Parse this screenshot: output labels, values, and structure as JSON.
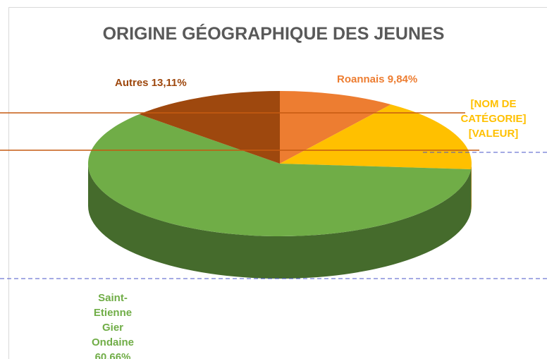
{
  "chart_data": {
    "type": "pie3d",
    "title": "ORIGINE GÉOGRAPHIQUE DES JEUNES",
    "categories": [
      "Roannais",
      "[NOM DE CATÉGORIE]",
      "Saint-Etienne Gier Ondaine",
      "Autres"
    ],
    "values": [
      9.84,
      16.39,
      60.66,
      13.11
    ],
    "value_labels": [
      "9,84%",
      "[VALEUR]",
      "60,66%",
      "13,11%"
    ],
    "colors": [
      "#ED7D31",
      "#FFC000",
      "#70AD47",
      "#9E480E"
    ]
  }
}
